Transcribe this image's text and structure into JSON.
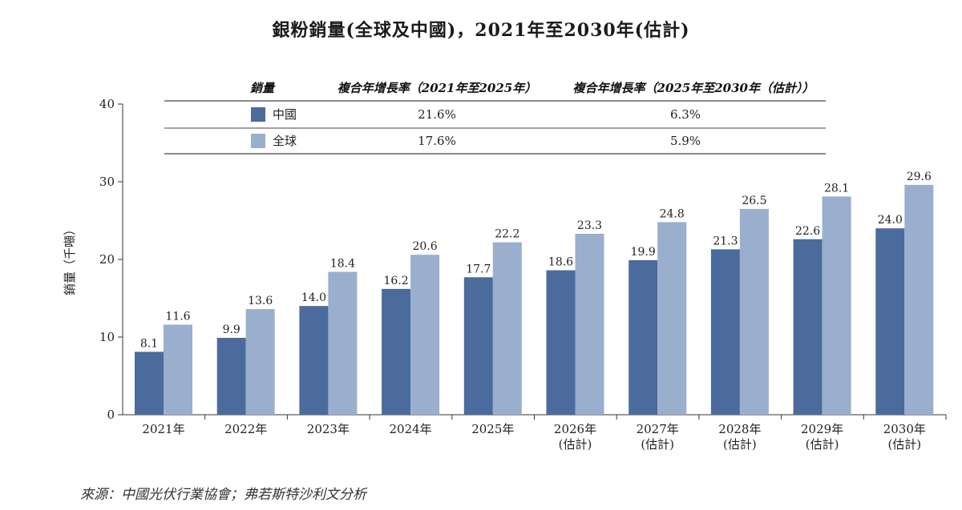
{
  "title": "銀粉銷量(全球及中國)，2021年至2030年(估計)",
  "source": "來源：中國光伏行業協會；弗若斯特沙利文分析",
  "colors": {
    "china": "#4a6b9b",
    "global": "#9aaecd"
  },
  "table": {
    "headers": [
      "銷量",
      "複合年增長率（2021年至2025年）",
      "複合年增長率（2025年至2030年（估計））"
    ],
    "rows": [
      {
        "label": "中國",
        "cagr1": "21.6%",
        "cagr2": "6.3%"
      },
      {
        "label": "全球",
        "cagr1": "17.6%",
        "cagr2": "5.9%"
      }
    ]
  },
  "chart_data": {
    "type": "bar",
    "title": "銀粉銷量(全球及中國)，2021年至2030年(估計)",
    "ylabel": "銷量（千噸）",
    "ylim": [
      0,
      40
    ],
    "yticks": [
      0,
      10,
      20,
      30,
      40
    ],
    "categories": [
      [
        "2021年"
      ],
      [
        "2022年"
      ],
      [
        "2023年"
      ],
      [
        "2024年"
      ],
      [
        "2025年"
      ],
      [
        "2026年",
        "(估計)"
      ],
      [
        "2027年",
        "(估計)"
      ],
      [
        "2028年",
        "(估計)"
      ],
      [
        "2029年",
        "(估計)"
      ],
      [
        "2030年",
        "(估計)"
      ]
    ],
    "series": [
      {
        "name": "中國",
        "values": [
          8.1,
          9.9,
          14.0,
          16.2,
          17.7,
          18.6,
          19.9,
          21.3,
          22.6,
          24.0
        ]
      },
      {
        "name": "全球",
        "values": [
          11.6,
          13.6,
          18.4,
          20.6,
          22.2,
          23.3,
          24.8,
          26.5,
          28.1,
          29.6
        ]
      }
    ]
  }
}
